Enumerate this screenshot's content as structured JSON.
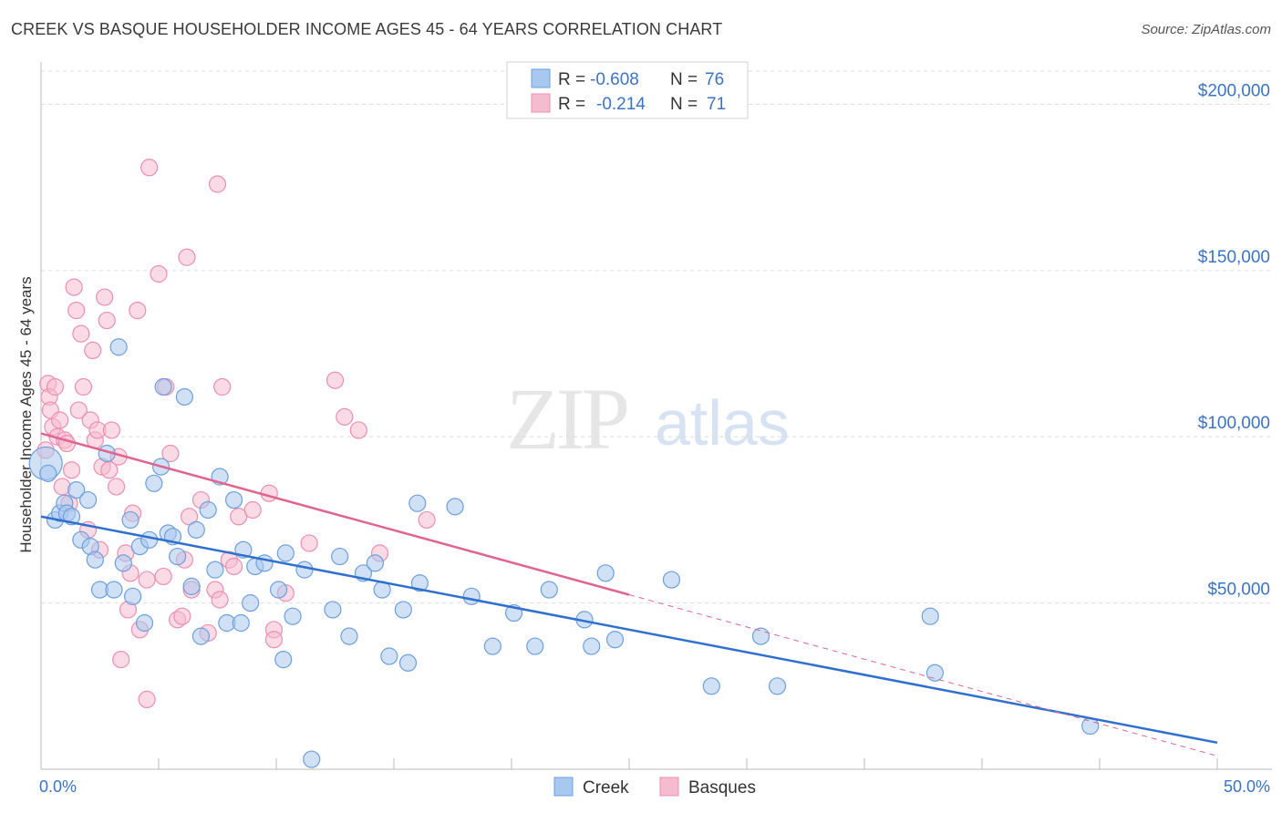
{
  "title": "CREEK VS BASQUE HOUSEHOLDER INCOME AGES 45 - 64 YEARS CORRELATION CHART",
  "source": "Source: ZipAtlas.com",
  "watermark": {
    "zip": "ZIP",
    "atlas": "atlas"
  },
  "colors": {
    "creek_fill": "#a9c8ef",
    "creek_stroke": "#6d9fdc",
    "creek_line": "#2f6fce",
    "basques_fill": "#f5bcd0",
    "basques_stroke": "#ea8fb0",
    "basques_line": "#e0648f",
    "tick_text": "#3b73c4",
    "grid": "#dddddd"
  },
  "legend": {
    "rows": [
      {
        "r_label": "R =",
        "r_value": "-0.608",
        "n_label": "N =",
        "n_value": "76"
      },
      {
        "r_label": "R =",
        "r_value": "-0.214",
        "n_label": "N =",
        "n_value": "71"
      }
    ]
  },
  "chart_data": {
    "type": "scatter",
    "title": "CREEK VS BASQUE HOUSEHOLDER INCOME AGES 45 - 64 YEARS CORRELATION CHART",
    "xlabel": "",
    "ylabel": "Householder Income Ages 45 - 64 years",
    "xlim": [
      0,
      50
    ],
    "ylim": [
      0,
      210000
    ],
    "x_tick_labels": [
      "0.0%",
      "50.0%"
    ],
    "y_ticks": [
      50000,
      100000,
      150000,
      200000
    ],
    "y_tick_labels": [
      "$50,000",
      "$100,000",
      "$150,000",
      "$200,000"
    ],
    "grid": true,
    "legend_placement": "top-center",
    "series": [
      {
        "name": "Creek",
        "trend": {
          "x0": 0,
          "y0": 76000,
          "x1": 50,
          "y1": 8000,
          "dashed_from": null
        },
        "points": [
          [
            0.2,
            92000
          ],
          [
            0.3,
            89000
          ],
          [
            0.6,
            75000
          ],
          [
            0.8,
            77000
          ],
          [
            1.0,
            80000
          ],
          [
            1.1,
            77000
          ],
          [
            1.3,
            76000
          ],
          [
            1.5,
            84000
          ],
          [
            1.7,
            69000
          ],
          [
            2.0,
            81000
          ],
          [
            2.1,
            67000
          ],
          [
            2.3,
            63000
          ],
          [
            2.5,
            54000
          ],
          [
            2.8,
            95000
          ],
          [
            3.1,
            54000
          ],
          [
            3.3,
            127000
          ],
          [
            3.5,
            62000
          ],
          [
            3.8,
            75000
          ],
          [
            3.9,
            52000
          ],
          [
            4.2,
            67000
          ],
          [
            4.4,
            44000
          ],
          [
            4.6,
            69000
          ],
          [
            4.8,
            86000
          ],
          [
            5.1,
            91000
          ],
          [
            5.2,
            115000
          ],
          [
            5.4,
            71000
          ],
          [
            5.6,
            70000
          ],
          [
            5.8,
            64000
          ],
          [
            6.1,
            112000
          ],
          [
            6.4,
            55000
          ],
          [
            6.6,
            72000
          ],
          [
            6.8,
            40000
          ],
          [
            7.1,
            78000
          ],
          [
            7.4,
            60000
          ],
          [
            7.6,
            88000
          ],
          [
            7.9,
            44000
          ],
          [
            8.2,
            81000
          ],
          [
            8.5,
            44000
          ],
          [
            8.6,
            66000
          ],
          [
            8.9,
            50000
          ],
          [
            9.1,
            61000
          ],
          [
            9.5,
            62000
          ],
          [
            10.1,
            54000
          ],
          [
            10.4,
            65000
          ],
          [
            10.7,
            46000
          ],
          [
            11.2,
            60000
          ],
          [
            10.3,
            33000
          ],
          [
            11.5,
            3000
          ],
          [
            12.4,
            48000
          ],
          [
            12.7,
            64000
          ],
          [
            13.1,
            40000
          ],
          [
            13.7,
            59000
          ],
          [
            14.2,
            62000
          ],
          [
            14.5,
            54000
          ],
          [
            14.8,
            34000
          ],
          [
            15.4,
            48000
          ],
          [
            15.6,
            32000
          ],
          [
            16.1,
            56000
          ],
          [
            16.0,
            80000
          ],
          [
            17.6,
            79000
          ],
          [
            18.3,
            52000
          ],
          [
            19.2,
            37000
          ],
          [
            20.1,
            47000
          ],
          [
            21.0,
            37000
          ],
          [
            21.6,
            54000
          ],
          [
            23.1,
            45000
          ],
          [
            23.4,
            37000
          ],
          [
            24.0,
            59000
          ],
          [
            24.4,
            39000
          ],
          [
            26.8,
            57000
          ],
          [
            28.5,
            25000
          ],
          [
            30.6,
            40000
          ],
          [
            31.3,
            25000
          ],
          [
            37.8,
            46000
          ],
          [
            38.0,
            29000
          ],
          [
            44.6,
            13000
          ]
        ]
      },
      {
        "name": "Basques",
        "trend": {
          "x0": 0,
          "y0": 101000,
          "x1": 50,
          "y1": 4000,
          "dashed_from": 25
        },
        "points": [
          [
            0.2,
            96000
          ],
          [
            0.3,
            116000
          ],
          [
            0.35,
            112000
          ],
          [
            0.4,
            108000
          ],
          [
            0.5,
            103000
          ],
          [
            0.6,
            115000
          ],
          [
            0.7,
            100000
          ],
          [
            0.8,
            105000
          ],
          [
            0.9,
            85000
          ],
          [
            1.0,
            99000
          ],
          [
            1.1,
            98000
          ],
          [
            1.2,
            80000
          ],
          [
            1.3,
            90000
          ],
          [
            1.4,
            145000
          ],
          [
            1.5,
            138000
          ],
          [
            1.6,
            108000
          ],
          [
            1.7,
            131000
          ],
          [
            1.8,
            115000
          ],
          [
            2.0,
            72000
          ],
          [
            2.1,
            105000
          ],
          [
            2.2,
            126000
          ],
          [
            2.3,
            99000
          ],
          [
            2.4,
            102000
          ],
          [
            2.5,
            66000
          ],
          [
            2.6,
            91000
          ],
          [
            2.7,
            142000
          ],
          [
            2.8,
            135000
          ],
          [
            2.9,
            90000
          ],
          [
            3.0,
            102000
          ],
          [
            3.2,
            85000
          ],
          [
            3.3,
            94000
          ],
          [
            3.4,
            33000
          ],
          [
            3.6,
            65000
          ],
          [
            3.8,
            59000
          ],
          [
            3.9,
            77000
          ],
          [
            4.1,
            138000
          ],
          [
            4.2,
            42000
          ],
          [
            4.5,
            21000
          ],
          [
            4.6,
            181000
          ],
          [
            5.0,
            149000
          ],
          [
            5.2,
            58000
          ],
          [
            5.3,
            115000
          ],
          [
            5.5,
            95000
          ],
          [
            5.8,
            45000
          ],
          [
            6.0,
            46000
          ],
          [
            6.1,
            63000
          ],
          [
            6.2,
            154000
          ],
          [
            6.3,
            76000
          ],
          [
            6.4,
            54000
          ],
          [
            6.8,
            81000
          ],
          [
            7.1,
            41000
          ],
          [
            7.4,
            54000
          ],
          [
            7.6,
            51000
          ],
          [
            7.7,
            115000
          ],
          [
            8.0,
            63000
          ],
          [
            8.2,
            61000
          ],
          [
            8.4,
            76000
          ],
          [
            9.0,
            78000
          ],
          [
            9.7,
            83000
          ],
          [
            9.9,
            42000
          ],
          [
            10.4,
            53000
          ],
          [
            12.5,
            117000
          ],
          [
            12.9,
            106000
          ],
          [
            13.5,
            102000
          ],
          [
            14.4,
            65000
          ],
          [
            16.4,
            75000
          ],
          [
            7.5,
            176000
          ],
          [
            9.9,
            39000
          ],
          [
            11.4,
            68000
          ],
          [
            3.7,
            48000
          ],
          [
            4.5,
            57000
          ]
        ]
      }
    ]
  },
  "bottom_legend": [
    {
      "label": "Creek"
    },
    {
      "label": "Basques"
    }
  ]
}
